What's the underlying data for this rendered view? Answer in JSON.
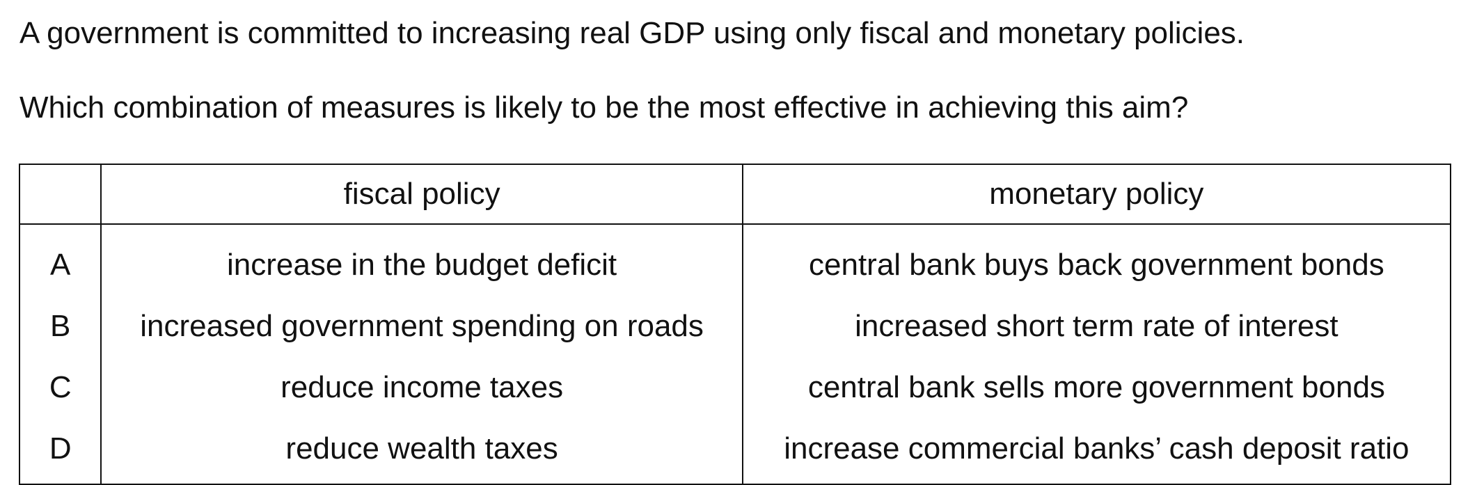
{
  "question": {
    "line1": "A government is committed to increasing real GDP using only fiscal and monetary policies.",
    "line2": "Which combination of measures is likely to be the most effective in achieving this aim?"
  },
  "table": {
    "headers": {
      "letter": "",
      "fiscal": "fiscal policy",
      "monetary": "monetary policy"
    },
    "rows": [
      {
        "letter": "A",
        "fiscal": "increase in the budget deficit",
        "monetary": "central bank buys back government bonds"
      },
      {
        "letter": "B",
        "fiscal": "increased government spending on roads",
        "monetary": "increased short term rate of interest"
      },
      {
        "letter": "C",
        "fiscal": "reduce income taxes",
        "monetary": "central bank sells more government bonds"
      },
      {
        "letter": "D",
        "fiscal": "reduce wealth taxes",
        "monetary": "increase commercial banks’ cash deposit ratio"
      }
    ]
  }
}
